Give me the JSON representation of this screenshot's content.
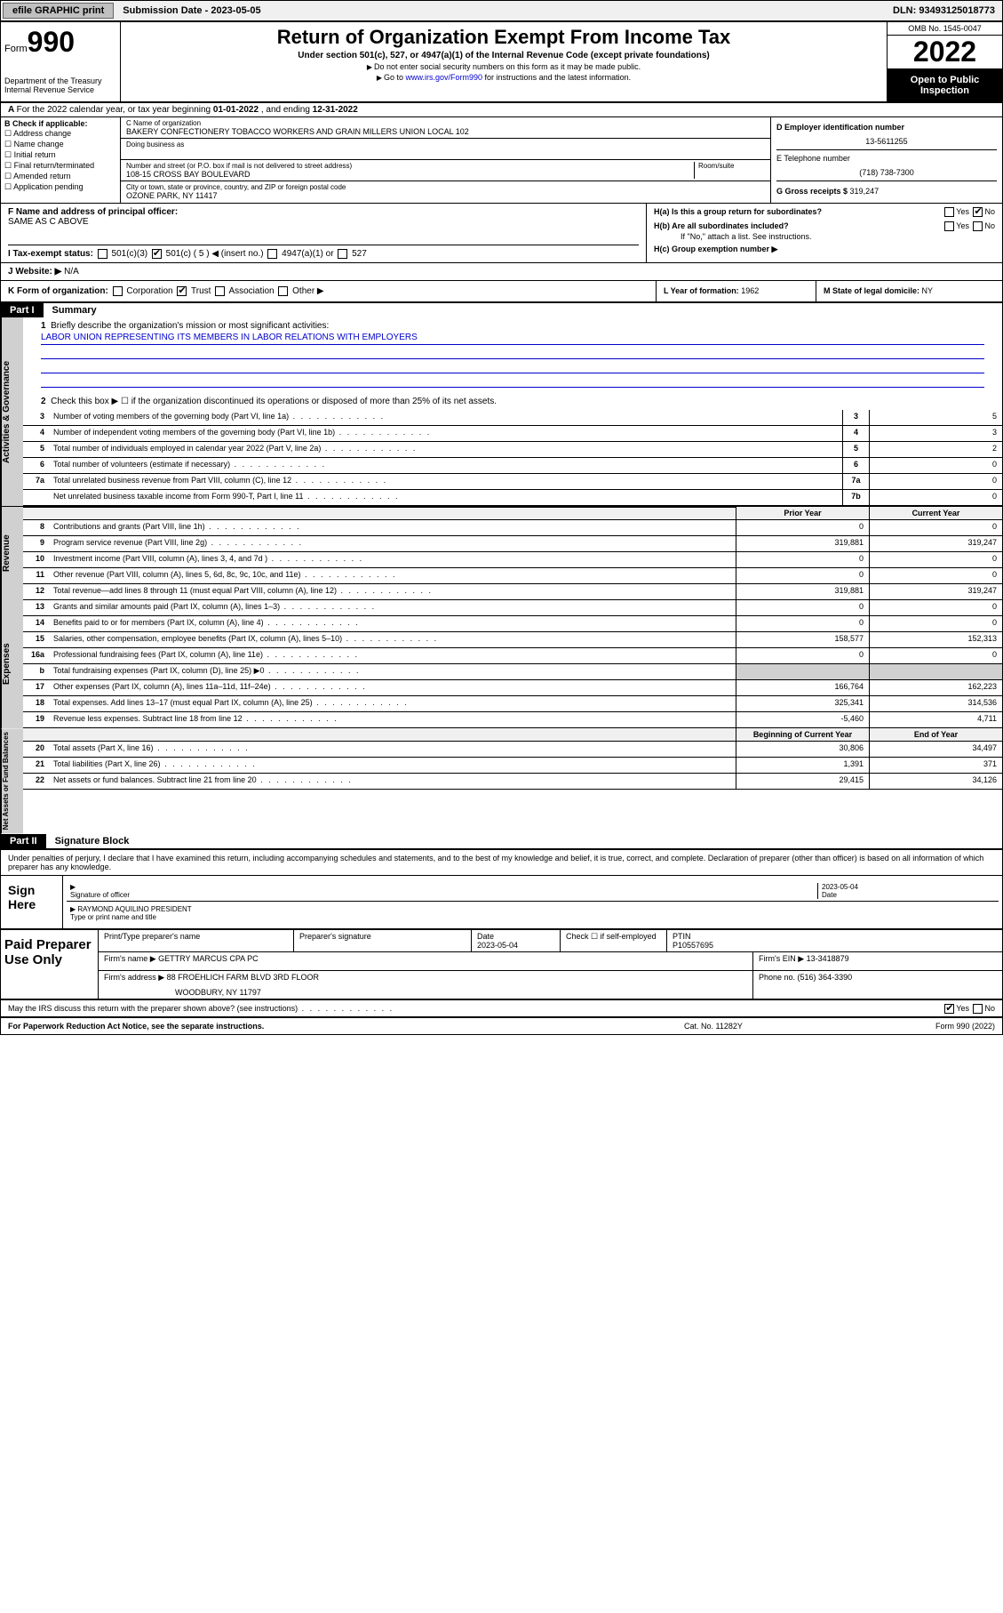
{
  "topbar": {
    "efile": "efile GRAPHIC print",
    "subdate_label": "Submission Date - ",
    "subdate": "2023-05-05",
    "dln_label": "DLN: ",
    "dln": "93493125018773"
  },
  "header": {
    "form_label": "Form",
    "form_num": "990",
    "dept": "Department of the Treasury\nInternal Revenue Service",
    "title": "Return of Organization Exempt From Income Tax",
    "sub": "Under section 501(c), 527, or 4947(a)(1) of the Internal Revenue Code (except private foundations)",
    "note1": "Do not enter social security numbers on this form as it may be made public.",
    "note2_pre": "Go to ",
    "note2_link": "www.irs.gov/Form990",
    "note2_post": " for instructions and the latest information.",
    "omb": "OMB No. 1545-0047",
    "year": "2022",
    "inspect": "Open to Public Inspection"
  },
  "row_a": {
    "text": "For the 2022 calendar year, or tax year beginning ",
    "begin": "01-01-2022",
    "mid": " , and ending ",
    "end": "12-31-2022"
  },
  "section_b": {
    "label": "B Check if applicable:",
    "opts": [
      "Address change",
      "Name change",
      "Initial return",
      "Final return/terminated",
      "Amended return",
      "Application pending"
    ],
    "c_name_label": "C Name of organization",
    "c_name": "BAKERY CONFECTIONERY TOBACCO WORKERS AND GRAIN MILLERS UNION LOCAL 102",
    "dba_label": "Doing business as",
    "addr_label": "Number and street (or P.O. box if mail is not delivered to street address)",
    "room_label": "Room/suite",
    "addr": "108-15 CROSS BAY BOULEVARD",
    "city_label": "City or town, state or province, country, and ZIP or foreign postal code",
    "city": "OZONE PARK, NY  11417",
    "d_label": "D Employer identification number",
    "d_ein": "13-5611255",
    "e_label": "E Telephone number",
    "e_phone": "(718) 738-7300",
    "g_label": "G Gross receipts $ ",
    "g_val": "319,247"
  },
  "section_f": {
    "f_label": "F Name and address of principal officer:",
    "f_val": "SAME AS C ABOVE",
    "ha": "H(a)  Is this a group return for subordinates?",
    "hb": "H(b)  Are all subordinates included?",
    "hb_note": "If \"No,\" attach a list. See instructions.",
    "hc": "H(c)  Group exemption number ▶",
    "yes": "Yes",
    "no": "No"
  },
  "row_i": {
    "label": "I  Tax-exempt status:",
    "opts": [
      "501(c)(3)",
      "501(c) ( 5 ) ◀ (insert no.)",
      "4947(a)(1) or",
      "527"
    ],
    "checked_idx": 1
  },
  "row_j": {
    "label": "J  Website: ▶",
    "val": "N/A"
  },
  "row_k": {
    "label": "K Form of organization:",
    "opts": [
      "Corporation",
      "Trust",
      "Association",
      "Other ▶"
    ],
    "checked_idx": 1,
    "l_label": "L Year of formation: ",
    "l_val": "1962",
    "m_label": "M State of legal domicile: ",
    "m_val": "NY"
  },
  "part1": {
    "num": "Part I",
    "title": "Summary",
    "q1": "Briefly describe the organization's mission or most significant activities:",
    "mission": "LABOR UNION REPRESENTING ITS MEMBERS IN LABOR RELATIONS WITH EMPLOYERS",
    "q2": "Check this box ▶ ☐  if the organization discontinued its operations or disposed of more than 25% of its net assets.",
    "lines_gov": [
      {
        "n": "3",
        "d": "Number of voting members of the governing body (Part VI, line 1a)",
        "box": "3",
        "v": "5"
      },
      {
        "n": "4",
        "d": "Number of independent voting members of the governing body (Part VI, line 1b)",
        "box": "4",
        "v": "3"
      },
      {
        "n": "5",
        "d": "Total number of individuals employed in calendar year 2022 (Part V, line 2a)",
        "box": "5",
        "v": "2"
      },
      {
        "n": "6",
        "d": "Total number of volunteers (estimate if necessary)",
        "box": "6",
        "v": "0"
      },
      {
        "n": "7a",
        "d": "Total unrelated business revenue from Part VIII, column (C), line 12",
        "box": "7a",
        "v": "0"
      },
      {
        "n": "",
        "d": "Net unrelated business taxable income from Form 990-T, Part I, line 11",
        "box": "7b",
        "v": "0"
      }
    ],
    "prior_label": "Prior Year",
    "current_label": "Current Year",
    "lines_rev": [
      {
        "n": "8",
        "d": "Contributions and grants (Part VIII, line 1h)",
        "p": "0",
        "c": "0"
      },
      {
        "n": "9",
        "d": "Program service revenue (Part VIII, line 2g)",
        "p": "319,881",
        "c": "319,247"
      },
      {
        "n": "10",
        "d": "Investment income (Part VIII, column (A), lines 3, 4, and 7d )",
        "p": "0",
        "c": "0"
      },
      {
        "n": "11",
        "d": "Other revenue (Part VIII, column (A), lines 5, 6d, 8c, 9c, 10c, and 11e)",
        "p": "0",
        "c": "0"
      },
      {
        "n": "12",
        "d": "Total revenue—add lines 8 through 11 (must equal Part VIII, column (A), line 12)",
        "p": "319,881",
        "c": "319,247"
      }
    ],
    "lines_exp": [
      {
        "n": "13",
        "d": "Grants and similar amounts paid (Part IX, column (A), lines 1–3)",
        "p": "0",
        "c": "0"
      },
      {
        "n": "14",
        "d": "Benefits paid to or for members (Part IX, column (A), line 4)",
        "p": "0",
        "c": "0"
      },
      {
        "n": "15",
        "d": "Salaries, other compensation, employee benefits (Part IX, column (A), lines 5–10)",
        "p": "158,577",
        "c": "152,313"
      },
      {
        "n": "16a",
        "d": "Professional fundraising fees (Part IX, column (A), line 11e)",
        "p": "0",
        "c": "0"
      },
      {
        "n": "b",
        "d": "Total fundraising expenses (Part IX, column (D), line 25) ▶0",
        "p": "",
        "c": ""
      },
      {
        "n": "17",
        "d": "Other expenses (Part IX, column (A), lines 11a–11d, 11f–24e)",
        "p": "166,764",
        "c": "162,223"
      },
      {
        "n": "18",
        "d": "Total expenses. Add lines 13–17 (must equal Part IX, column (A), line 25)",
        "p": "325,341",
        "c": "314,536"
      },
      {
        "n": "19",
        "d": "Revenue less expenses. Subtract line 18 from line 12",
        "p": "-5,460",
        "c": "4,711"
      }
    ],
    "begin_label": "Beginning of Current Year",
    "end_label": "End of Year",
    "lines_net": [
      {
        "n": "20",
        "d": "Total assets (Part X, line 16)",
        "p": "30,806",
        "c": "34,497"
      },
      {
        "n": "21",
        "d": "Total liabilities (Part X, line 26)",
        "p": "1,391",
        "c": "371"
      },
      {
        "n": "22",
        "d": "Net assets or fund balances. Subtract line 21 from line 20",
        "p": "29,415",
        "c": "34,126"
      }
    ],
    "vlabels": {
      "gov": "Activities & Governance",
      "rev": "Revenue",
      "exp": "Expenses",
      "net": "Net Assets or Fund Balances"
    }
  },
  "part2": {
    "num": "Part II",
    "title": "Signature Block",
    "decl": "Under penalties of perjury, I declare that I have examined this return, including accompanying schedules and statements, and to the best of my knowledge and belief, it is true, correct, and complete. Declaration of preparer (other than officer) is based on all information of which preparer has any knowledge.",
    "sign_here": "Sign Here",
    "sig_officer": "Signature of officer",
    "sig_date": "2023-05-04",
    "date_label": "Date",
    "officer_name": "RAYMOND AQUILINO PRESIDENT",
    "name_label": "Type or print name and title",
    "paid_label": "Paid Preparer Use Only",
    "prep_name_label": "Print/Type preparer's name",
    "prep_sig_label": "Preparer's signature",
    "prep_date": "2023-05-04",
    "self_emp": "Check ☐ if self-employed",
    "ptin_label": "PTIN",
    "ptin": "P10557695",
    "firm_name_label": "Firm's name    ▶ ",
    "firm_name": "GETTRY MARCUS CPA PC",
    "firm_ein_label": "Firm's EIN ▶ ",
    "firm_ein": "13-3418879",
    "firm_addr_label": "Firm's address ▶ ",
    "firm_addr1": "88 FROEHLICH FARM BLVD 3RD FLOOR",
    "firm_addr2": "WOODBURY, NY 11797",
    "firm_phone_label": "Phone no. ",
    "firm_phone": "(516) 364-3390",
    "discuss": "May the IRS discuss this return with the preparer shown above? (see instructions)",
    "yes": "Yes",
    "no": "No"
  },
  "footer": {
    "l": "For Paperwork Reduction Act Notice, see the separate instructions.",
    "m": "Cat. No. 11282Y",
    "r": "Form 990 (2022)"
  }
}
